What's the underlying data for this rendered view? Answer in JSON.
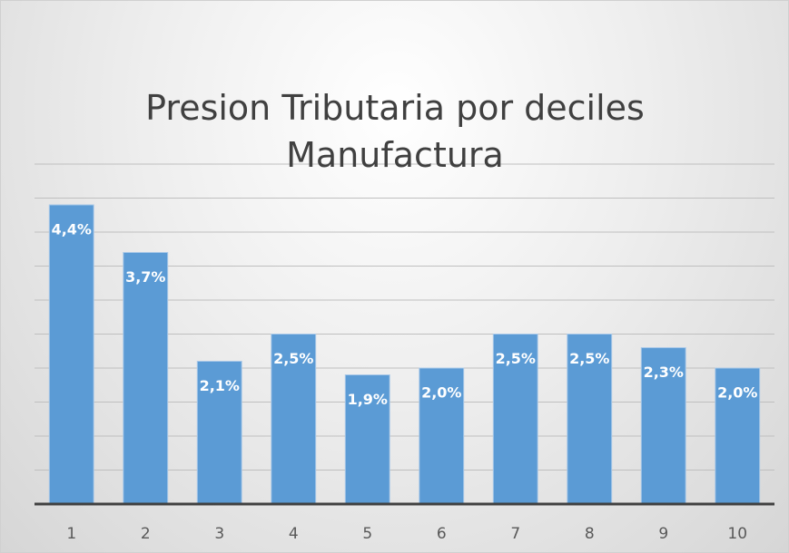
{
  "chart_data": {
    "type": "bar",
    "title": "Presion Tributaria por deciles Manufactura",
    "categories": [
      "1",
      "2",
      "3",
      "4",
      "5",
      "6",
      "7",
      "8",
      "9",
      "10"
    ],
    "values": [
      4.4,
      3.7,
      2.1,
      2.5,
      1.9,
      2.0,
      2.5,
      2.5,
      2.3,
      2.0
    ],
    "value_labels": [
      "4,4%",
      "3,7%",
      "2,1%",
      "2,5%",
      "1,9%",
      "2,0%",
      "2,5%",
      "2,5%",
      "2,3%",
      "2,0%"
    ],
    "color": "#5b9bd5",
    "ylim": [
      0,
      5
    ],
    "yticks": [
      0,
      0.5,
      1,
      1.5,
      2,
      2.5,
      3,
      3.5,
      4,
      4.5,
      5
    ],
    "grid": true
  }
}
